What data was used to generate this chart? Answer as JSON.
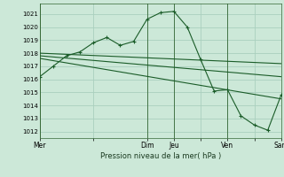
{
  "background_color": "#cce8d8",
  "grid_color": "#aacfbe",
  "line_color": "#1a5c28",
  "xlabel": "Pression niveau de la mer( hPa )",
  "ylim": [
    1011.5,
    1021.8
  ],
  "yticks": [
    1012,
    1013,
    1014,
    1015,
    1016,
    1017,
    1018,
    1019,
    1020,
    1021
  ],
  "xtick_labels": [
    "Mer",
    "",
    "Dim",
    "Jeu",
    "",
    "Ven",
    "",
    "Sam"
  ],
  "xtick_positions": [
    0,
    3,
    6,
    7.5,
    9,
    10.5,
    12,
    13.5
  ],
  "series1_x": [
    0,
    0.75,
    1.5,
    2.25,
    3.0,
    3.75,
    4.5,
    5.25,
    6.0,
    6.75,
    7.5,
    8.25,
    9.0,
    9.75,
    10.5,
    11.25,
    12.0,
    12.75,
    13.5
  ],
  "series1_y": [
    1016.2,
    1017.0,
    1017.8,
    1018.1,
    1018.8,
    1019.2,
    1018.6,
    1018.9,
    1020.6,
    1021.1,
    1021.2,
    1020.0,
    1017.5,
    1015.1,
    1015.2,
    1013.2,
    1012.5,
    1012.1,
    1014.8
  ],
  "trend1_x": [
    0,
    13.5
  ],
  "trend1_y": [
    1018.0,
    1017.2
  ],
  "trend2_x": [
    0,
    13.5
  ],
  "trend2_y": [
    1017.8,
    1016.2
  ],
  "trend3_x": [
    0,
    13.5
  ],
  "trend3_y": [
    1017.6,
    1014.5
  ],
  "vlines_x": [
    0,
    6.0,
    7.5,
    10.5,
    13.5
  ],
  "figsize": [
    3.2,
    2.0
  ],
  "dpi": 100
}
